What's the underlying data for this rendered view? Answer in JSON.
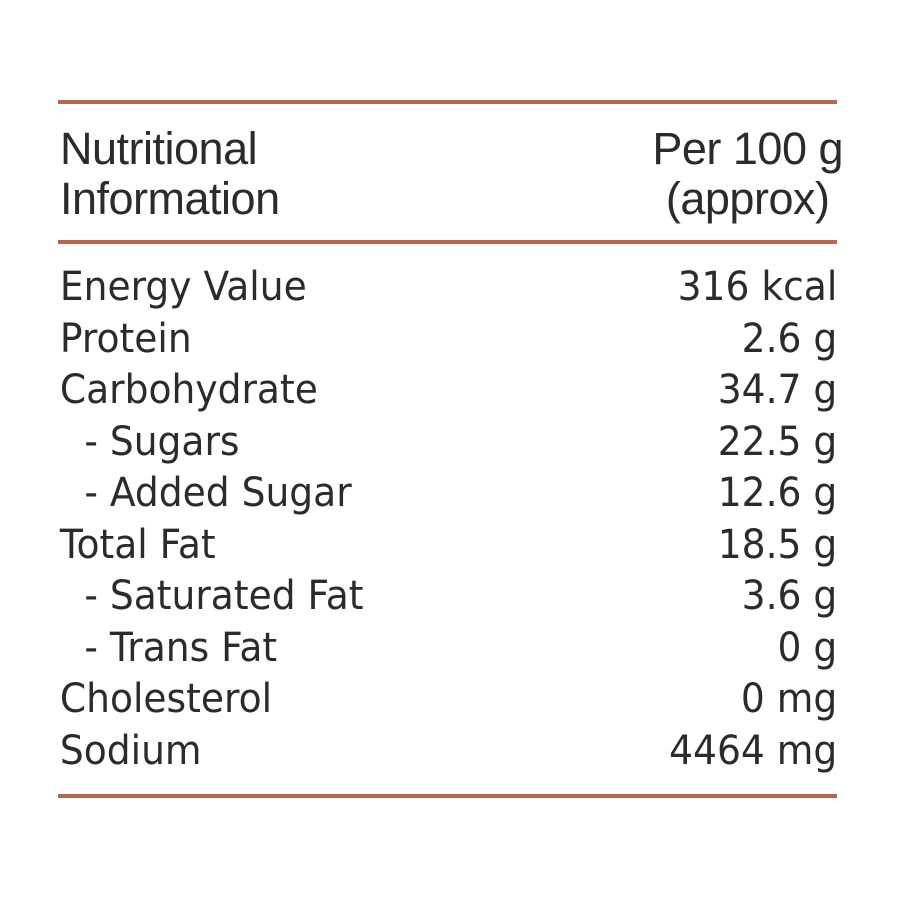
{
  "colors": {
    "rule": "#b8684a",
    "text": "#2b2b2b",
    "background": "#ffffff"
  },
  "header": {
    "left_line1": "Nutritional",
    "left_line2": "Information",
    "right_line1": "Per 100 g",
    "right_line2": "(approx)"
  },
  "rows": [
    {
      "label": "Energy Value",
      "value": "316 kcal",
      "indent": false
    },
    {
      "label": "Protein",
      "value": "2.6 g",
      "indent": false
    },
    {
      "label": "Carbohydrate",
      "value": "34.7 g",
      "indent": false
    },
    {
      "label": "- Sugars",
      "value": "22.5 g",
      "indent": true
    },
    {
      "label": "- Added Sugar",
      "value": "12.6 g",
      "indent": true
    },
    {
      "label": "Total Fat",
      "value": "18.5 g",
      "indent": false
    },
    {
      "label": "- Saturated Fat",
      "value": "3.6 g",
      "indent": true
    },
    {
      "label": "- Trans Fat",
      "value": "0 g",
      "indent": true
    },
    {
      "label": "Cholesterol",
      "value": "0 mg",
      "indent": false
    },
    {
      "label": "Sodium",
      "value": "4464 mg",
      "indent": false
    }
  ]
}
